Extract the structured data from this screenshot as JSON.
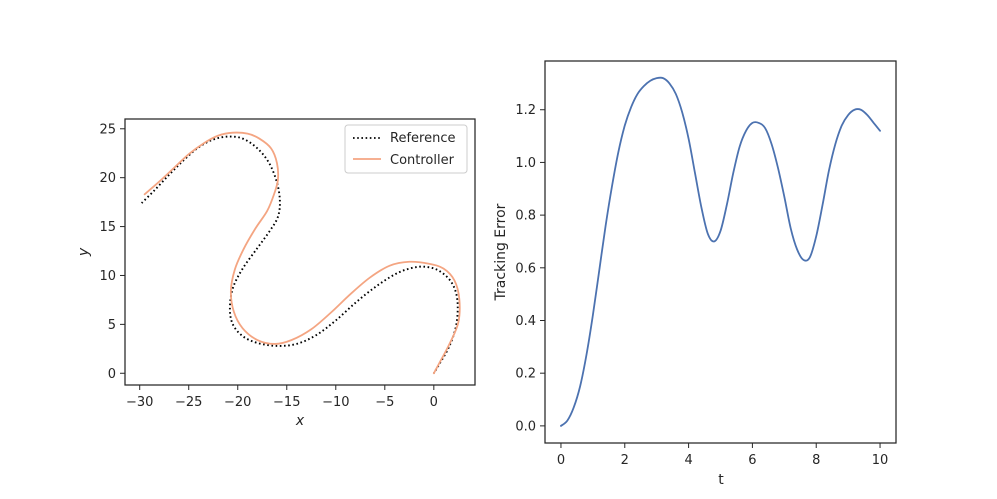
{
  "chart_data": [
    {
      "type": "line",
      "xlabel": "x",
      "ylabel": "y",
      "xlim": [
        -31.5,
        4.2
      ],
      "ylim": [
        -1.2,
        26.0
      ],
      "xticks": [
        -30,
        -25,
        -20,
        -15,
        -10,
        -5,
        0
      ],
      "xtick_labels": [
        "−30",
        "−25",
        "−20",
        "−15",
        "−10",
        "−5",
        "0"
      ],
      "yticks": [
        0,
        5,
        10,
        15,
        20,
        25
      ],
      "ytick_labels": [
        "0",
        "5",
        "10",
        "15",
        "20",
        "25"
      ],
      "grid": false,
      "legend": "top-right",
      "series": [
        {
          "name": "Reference",
          "style": "dotted",
          "color": "#000000",
          "x": [
            -29.8,
            -28.5,
            -27.0,
            -25.5,
            -24.0,
            -22.5,
            -21.0,
            -19.5,
            -18.0,
            -16.8,
            -16.0,
            -15.7,
            -15.9,
            -16.7,
            -18.0,
            -19.5,
            -20.5,
            -20.8,
            -20.5,
            -19.5,
            -18.0,
            -16.0,
            -14.0,
            -12.0,
            -10.0,
            -8.0,
            -6.0,
            -4.0,
            -2.5,
            -1.0,
            0.5,
            1.8,
            2.4,
            2.3,
            1.6,
            0.6,
            0.0
          ],
          "y": [
            17.4,
            18.7,
            20.3,
            21.8,
            23.1,
            23.9,
            24.2,
            24.0,
            23.0,
            21.5,
            19.5,
            17.6,
            16.0,
            14.6,
            12.8,
            10.7,
            8.7,
            6.6,
            5.0,
            3.8,
            3.1,
            2.8,
            3.0,
            3.9,
            5.4,
            7.2,
            8.8,
            10.1,
            10.7,
            10.9,
            10.5,
            9.3,
            7.5,
            5.0,
            2.8,
            1.0,
            0.0
          ]
        },
        {
          "name": "Controller",
          "style": "solid",
          "color": "#f4a582",
          "x": [
            0.0,
            0.7,
            1.6,
            2.5,
            2.6,
            2.1,
            1.0,
            -0.5,
            -2.5,
            -4.5,
            -6.5,
            -8.5,
            -10.5,
            -12.5,
            -14.5,
            -16.2,
            -18.0,
            -19.5,
            -20.4,
            -20.7,
            -20.3,
            -19.4,
            -18.2,
            -17.0,
            -16.3,
            -15.9,
            -16.0,
            -16.6,
            -17.8,
            -19.0,
            -20.5,
            -22.0,
            -23.5,
            -25.0,
            -26.5,
            -28.0,
            -29.5
          ],
          "y": [
            0.0,
            1.3,
            3.0,
            5.2,
            7.6,
            9.5,
            10.7,
            11.2,
            11.4,
            11.0,
            9.8,
            8.1,
            6.2,
            4.5,
            3.4,
            3.0,
            3.4,
            4.6,
            6.3,
            8.4,
            10.6,
            12.7,
            14.8,
            16.6,
            18.3,
            19.8,
            21.5,
            23.0,
            24.0,
            24.5,
            24.6,
            24.3,
            23.5,
            22.4,
            21.0,
            19.6,
            18.3
          ]
        }
      ]
    },
    {
      "type": "line",
      "xlabel": "t",
      "ylabel": "Tracking Error",
      "xlim": [
        -0.5,
        10.5
      ],
      "ylim": [
        -0.065,
        1.385
      ],
      "xticks": [
        0,
        2,
        4,
        6,
        8,
        10
      ],
      "xtick_labels": [
        "0",
        "2",
        "4",
        "6",
        "8",
        "10"
      ],
      "yticks": [
        0.0,
        0.2,
        0.4,
        0.6,
        0.8,
        1.0,
        1.2
      ],
      "ytick_labels": [
        "0.0",
        "0.2",
        "0.4",
        "0.6",
        "0.8",
        "1.0",
        "1.2"
      ],
      "grid": false,
      "series": [
        {
          "color": "#4c72b0",
          "x": [
            0.0,
            0.2,
            0.4,
            0.6,
            0.8,
            1.0,
            1.2,
            1.4,
            1.6,
            1.8,
            2.0,
            2.2,
            2.4,
            2.6,
            2.8,
            3.0,
            3.2,
            3.4,
            3.6,
            3.8,
            4.0,
            4.2,
            4.4,
            4.6,
            4.8,
            5.0,
            5.2,
            5.4,
            5.6,
            5.8,
            6.0,
            6.2,
            6.4,
            6.6,
            6.8,
            7.0,
            7.2,
            7.4,
            7.6,
            7.8,
            8.0,
            8.2,
            8.4,
            8.6,
            8.8,
            9.0,
            9.2,
            9.4,
            9.6,
            9.8,
            10.0
          ],
          "y": [
            0.0,
            0.02,
            0.07,
            0.15,
            0.27,
            0.42,
            0.59,
            0.76,
            0.91,
            1.04,
            1.14,
            1.21,
            1.26,
            1.29,
            1.31,
            1.32,
            1.32,
            1.3,
            1.26,
            1.19,
            1.09,
            0.96,
            0.83,
            0.73,
            0.7,
            0.74,
            0.84,
            0.96,
            1.06,
            1.12,
            1.15,
            1.15,
            1.13,
            1.07,
            0.98,
            0.87,
            0.75,
            0.67,
            0.63,
            0.64,
            0.72,
            0.84,
            0.97,
            1.07,
            1.14,
            1.18,
            1.2,
            1.2,
            1.18,
            1.15,
            1.12
          ]
        }
      ]
    }
  ]
}
